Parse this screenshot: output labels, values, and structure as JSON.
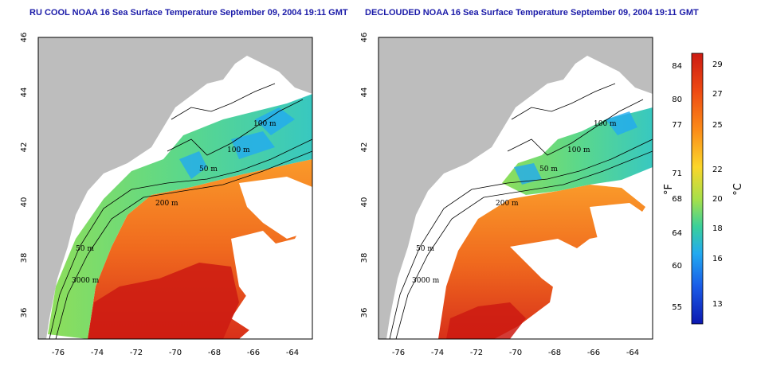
{
  "maps": [
    {
      "title": "RU COOL NOAA 16 Sea Surface Temperature September 09, 2004 19:11 GMT",
      "x_ticks": [
        "-76",
        "-74",
        "-72",
        "-70",
        "-68",
        "-66",
        "-64"
      ],
      "y_ticks": [
        "46",
        "44",
        "42",
        "40",
        "38",
        "36"
      ],
      "contour_labels": [
        "100 m",
        "100 m",
        "50 m",
        "200 m",
        "50 m",
        "3000 m"
      ]
    },
    {
      "title": "DECLOUDED NOAA 16 Sea Surface Temperature September 09, 2004 19:11 GMT",
      "x_ticks": [
        "-76",
        "-74",
        "-72",
        "-70",
        "-68",
        "-66",
        "-64"
      ],
      "y_ticks": [
        "46",
        "44",
        "42",
        "40",
        "38",
        "36"
      ],
      "contour_labels": [
        "100 m",
        "100 m",
        "50 m",
        "200 m",
        "50 m",
        "3000 m"
      ]
    }
  ],
  "colorbar": {
    "f_label": "°F",
    "c_label": "°C",
    "f_ticks": [
      "84",
      "80",
      "77",
      "71",
      "68",
      "64",
      "60",
      "55"
    ],
    "c_ticks": [
      "29",
      "27",
      "25",
      "22",
      "20",
      "18",
      "16",
      "13"
    ],
    "colors": [
      "#cc1a12",
      "#ee4a12",
      "#fb8a18",
      "#fbd62a",
      "#a6e04a",
      "#3ad09a",
      "#22aaf0",
      "#1a5ce8",
      "#0c18b0"
    ]
  },
  "colors": {
    "land": "#bdbdbd",
    "warm_sst": "#ee5a1a",
    "hot_sst": "#cc1a12",
    "cool_sst": "#66d96a",
    "cold_sst": "#22aaf0",
    "title_text": "#1a1aa8"
  }
}
